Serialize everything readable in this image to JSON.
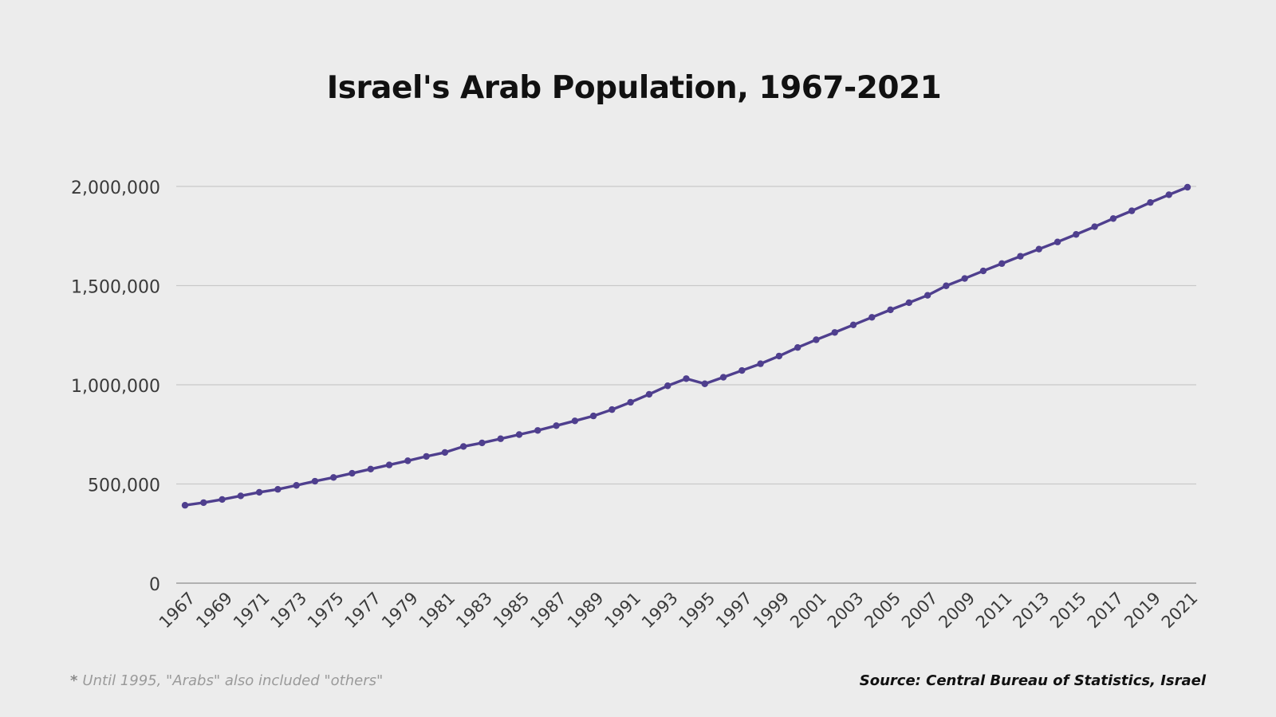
{
  "chart_data": {
    "type": "line",
    "title": "Israel's Arab Population, 1967-2021",
    "xlabel": "",
    "ylabel": "",
    "ylim": [
      0,
      2000000
    ],
    "yticks": [
      "0",
      "500,000",
      "1,000,000",
      "1,500,000",
      "2,000,000"
    ],
    "ytick_values": [
      0,
      500000,
      1000000,
      1500000,
      2000000
    ],
    "grid": true,
    "legend": "none",
    "line_color": "#4f3f8e",
    "x": [
      1967,
      1968,
      1969,
      1970,
      1971,
      1972,
      1973,
      1974,
      1975,
      1976,
      1977,
      1978,
      1979,
      1980,
      1981,
      1982,
      1983,
      1984,
      1985,
      1986,
      1987,
      1988,
      1989,
      1990,
      1991,
      1992,
      1993,
      1994,
      1995,
      1996,
      1997,
      1998,
      1999,
      2000,
      2001,
      2002,
      2003,
      2004,
      2005,
      2006,
      2007,
      2008,
      2009,
      2010,
      2011,
      2012,
      2013,
      2014,
      2015,
      2016,
      2017,
      2018,
      2019,
      2020,
      2021
    ],
    "xtick_labels": [
      "1967",
      "1969",
      "1971",
      "1973",
      "1975",
      "1977",
      "1979",
      "1981",
      "1983",
      "1985",
      "1987",
      "1989",
      "1991",
      "1993",
      "1995",
      "1997",
      "1999",
      "2001",
      "2003",
      "2005",
      "2007",
      "2009",
      "2011",
      "2013",
      "2015",
      "2017",
      "2019",
      "2021"
    ],
    "series": [
      {
        "values": [
          392700,
          406000,
          422000,
          440000,
          458000,
          473000,
          493000,
          514000,
          533000,
          554000,
          575000,
          596000,
          617000,
          639000,
          659000,
          689000,
          707000,
          728000,
          749000,
          770000,
          794000,
          818000,
          843000,
          875000,
          912000,
          952000,
          995000,
          1031000,
          1005000,
          1038000,
          1072000,
          1106000,
          1145000,
          1188000,
          1227000,
          1264000,
          1302000,
          1340000,
          1378000,
          1414000,
          1451000,
          1499000,
          1536000,
          1574000,
          1611000,
          1648000,
          1684000,
          1720000,
          1758000,
          1797000,
          1838000,
          1877000,
          1919000,
          1958000,
          1996000
        ]
      }
    ]
  },
  "footnote": {
    "star": "*",
    "text": "Until 1995, \"Arabs\" also included \"others\""
  },
  "source": "Source: Central Bureau of Statistics, Israel"
}
